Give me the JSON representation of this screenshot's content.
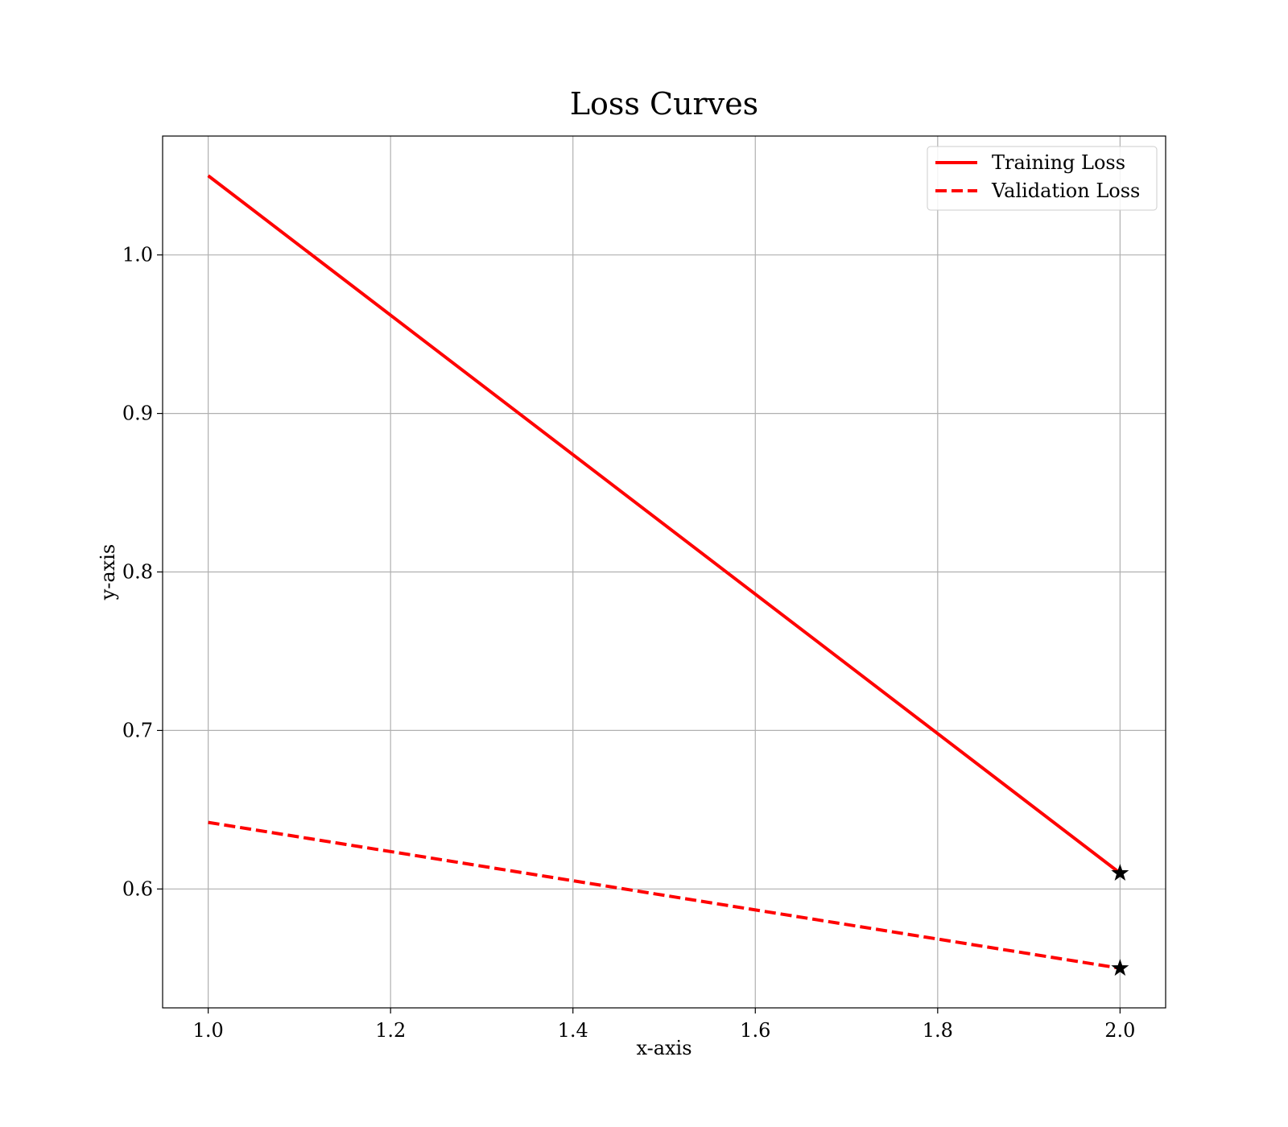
{
  "chart_data": {
    "type": "line",
    "title": "Loss Curves",
    "xlabel": "x-axis",
    "ylabel": "y-axis",
    "xlim": [
      0.95,
      2.05
    ],
    "ylim": [
      0.525,
      1.075
    ],
    "x_ticks": [
      1.0,
      1.2,
      1.4,
      1.6,
      1.8,
      2.0
    ],
    "x_tick_labels": [
      "1.0",
      "1.2",
      "1.4",
      "1.6",
      "1.8",
      "2.0"
    ],
    "y_ticks": [
      0.6,
      0.7,
      0.8,
      0.9,
      1.0
    ],
    "y_tick_labels": [
      "0.6",
      "0.7",
      "0.8",
      "0.9",
      "1.0"
    ],
    "grid": true,
    "legend_position": "top-right",
    "series": [
      {
        "name": "Training Loss",
        "x": [
          1.0,
          2.0
        ],
        "y": [
          1.05,
          0.61
        ],
        "color": "#ff0000",
        "line_style": "solid",
        "end_marker": "star"
      },
      {
        "name": "Validation Loss",
        "x": [
          1.0,
          2.0
        ],
        "y": [
          0.642,
          0.55
        ],
        "color": "#ff0000",
        "line_style": "dashed",
        "end_marker": "star"
      }
    ]
  }
}
